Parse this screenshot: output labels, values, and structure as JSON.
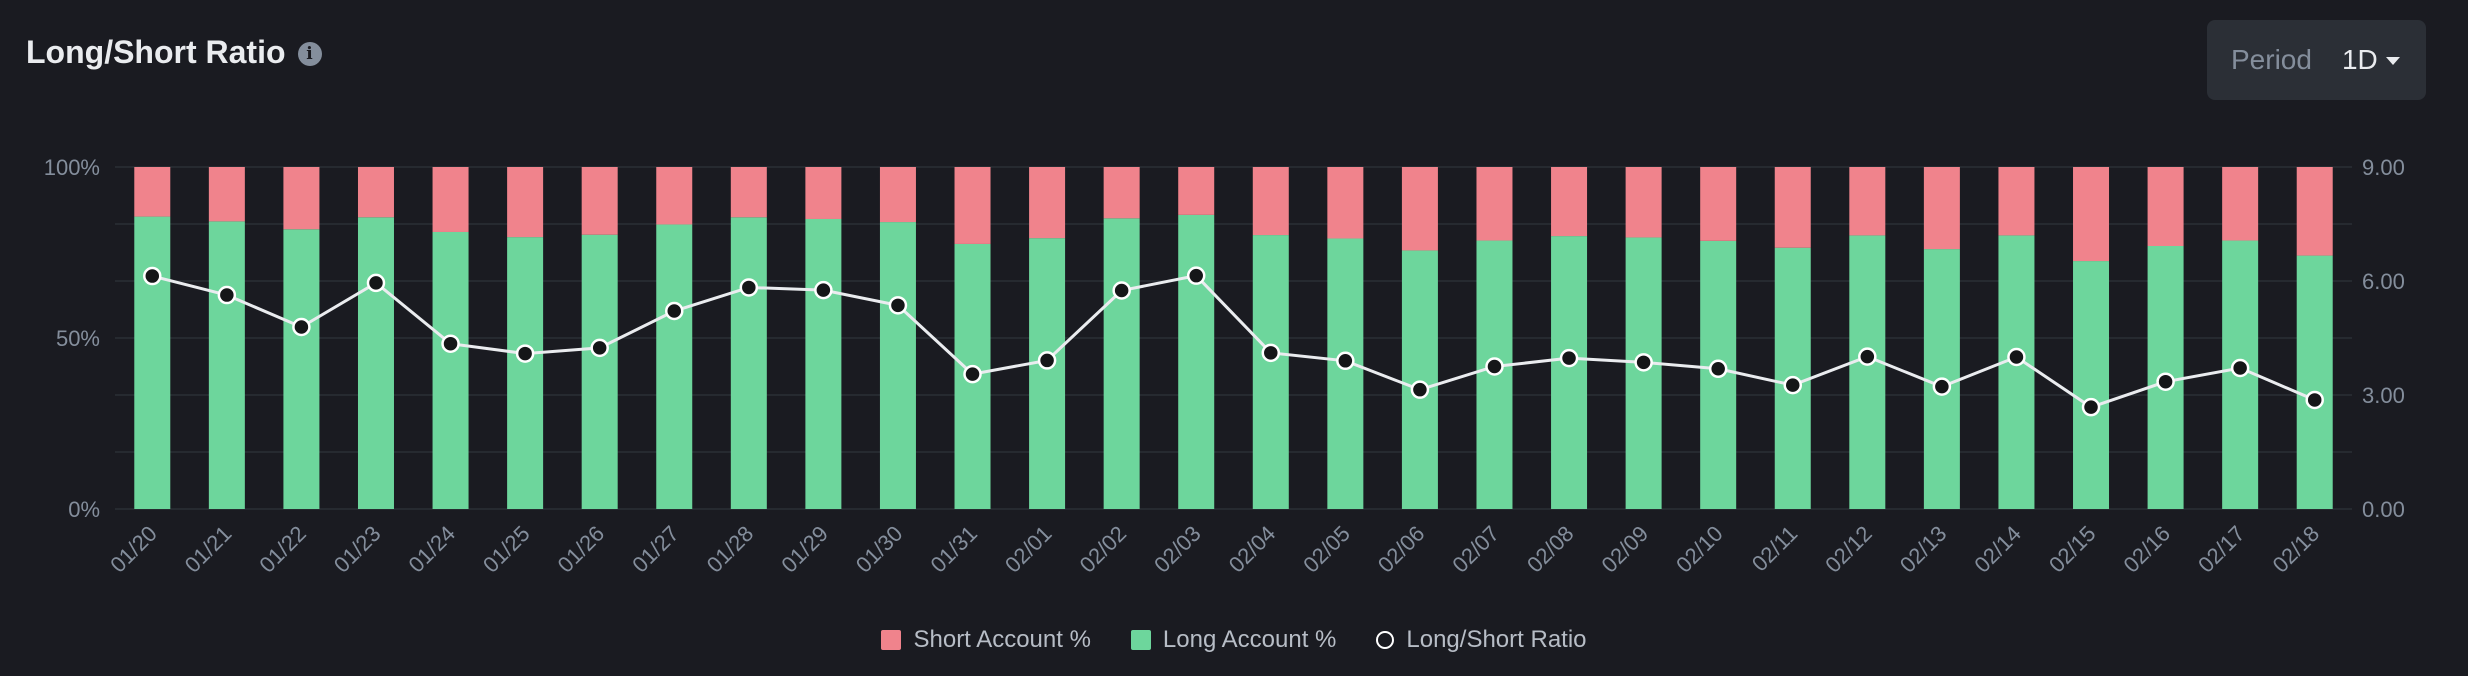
{
  "header": {
    "title": "Long/Short Ratio",
    "info_icon": "info-icon",
    "period_label": "Period",
    "period_value": "1D"
  },
  "colors": {
    "short": "#f0838c",
    "long": "#6dd69c",
    "line": "#eaecef",
    "background": "#1a1b21",
    "grid": "#2b2f36"
  },
  "chart_data": {
    "type": "bar",
    "stacked": true,
    "categories": [
      "01/20",
      "01/21",
      "01/22",
      "01/23",
      "01/24",
      "01/25",
      "01/26",
      "01/27",
      "01/28",
      "01/29",
      "01/30",
      "01/31",
      "02/01",
      "02/02",
      "02/03",
      "02/04",
      "02/05",
      "02/06",
      "02/07",
      "02/08",
      "02/09",
      "02/10",
      "02/11",
      "02/12",
      "02/13",
      "02/14",
      "02/15",
      "02/16",
      "02/17",
      "02/18"
    ],
    "series": [
      {
        "name": "Short Account %",
        "axis": "left",
        "values": [
          14.5,
          15.9,
          18.2,
          14.7,
          19.0,
          20.5,
          19.8,
          16.8,
          14.7,
          15.2,
          16.1,
          22.5,
          20.8,
          15.0,
          14.0,
          19.9,
          20.9,
          24.4,
          21.5,
          20.2,
          20.6,
          21.6,
          23.6,
          20.0,
          24.0,
          20.0,
          27.5,
          23.1,
          21.5,
          25.9
        ]
      },
      {
        "name": "Long Account %",
        "axis": "left",
        "values": [
          85.5,
          84.1,
          81.8,
          85.3,
          81.0,
          79.5,
          80.2,
          83.2,
          85.3,
          84.8,
          83.9,
          77.5,
          79.2,
          85.0,
          86.0,
          80.1,
          79.1,
          75.6,
          78.5,
          79.8,
          79.4,
          78.4,
          76.4,
          80.0,
          76.0,
          80.0,
          72.5,
          76.9,
          78.5,
          74.1
        ]
      },
      {
        "name": "Long/Short Ratio",
        "type": "line",
        "axis": "right",
        "values": [
          6.13,
          5.63,
          4.79,
          5.95,
          4.35,
          4.09,
          4.24,
          5.21,
          5.83,
          5.76,
          5.36,
          3.55,
          3.91,
          5.75,
          6.14,
          4.11,
          3.9,
          3.14,
          3.75,
          3.97,
          3.86,
          3.69,
          3.26,
          4.01,
          3.22,
          4.0,
          2.68,
          3.35,
          3.71,
          2.87
        ]
      }
    ],
    "y_left": {
      "ticks": [
        "0%",
        "50%",
        "100%"
      ],
      "ylim": [
        0,
        100
      ]
    },
    "y_right": {
      "ticks": [
        "0.00",
        "3.00",
        "6.00",
        "9.00"
      ],
      "ylim": [
        0,
        9
      ]
    },
    "grid": true,
    "legend": "bottom-center"
  }
}
